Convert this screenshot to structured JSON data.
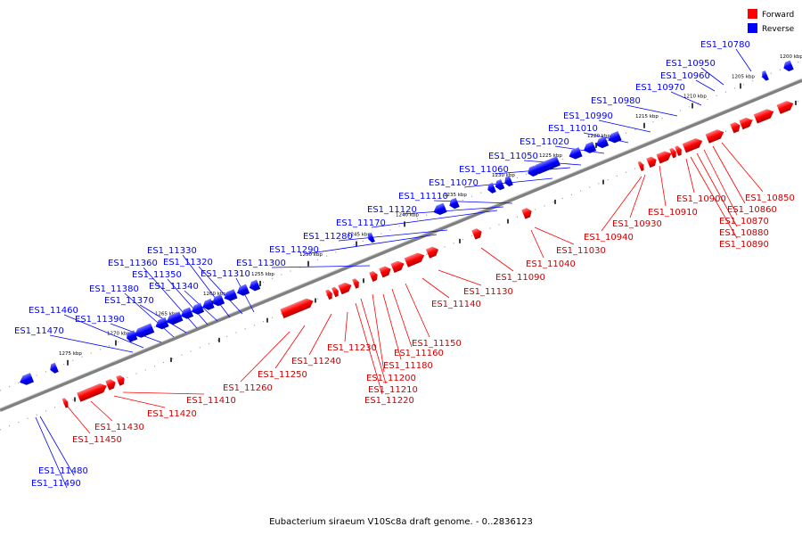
{
  "caption": "Eubacterium siraeum V10Sc8a draft genome. - 0..2836123",
  "colors": {
    "forward": "#ff0000",
    "reverse": "#0000ff",
    "backbone": "#808080"
  },
  "legend": [
    {
      "key": "forward",
      "label": "Forward",
      "color": "#ff0000"
    },
    {
      "key": "reverse",
      "label": "Reverse",
      "color": "#0000ff"
    }
  ],
  "ticks": [
    "1200 kbp",
    "1205 kbp",
    "1210 kbp",
    "1215 kbp",
    "1220 kbp",
    "1225 kbp",
    "1230 kbp",
    "1235 kbp",
    "1240 kbp",
    "1245 kbp",
    "1250 kbp",
    "1255 kbp",
    "1260 kbp",
    "1265 kbp",
    "1270 kbp",
    "1275 kbp"
  ],
  "reverse_genes": [
    "ES1_10780",
    "ES1_10950",
    "ES1_10960",
    "ES1_10970",
    "ES1_10980",
    "ES1_10990",
    "ES1_11010",
    "ES1_11020",
    "ES1_11050",
    "ES1_11060",
    "ES1_11070",
    "ES1_11110",
    "ES1_11120",
    "ES1_11170",
    "ES1_11280",
    "ES1_11290",
    "ES1_11300",
    "ES1_11310",
    "ES1_11320",
    "ES1_11330",
    "ES1_11340",
    "ES1_11350",
    "ES1_11360",
    "ES1_11370",
    "ES1_11380",
    "ES1_11390",
    "ES1_11460",
    "ES1_11470",
    "ES1_11480",
    "ES1_11490"
  ],
  "forward_genes": [
    "ES1_10850",
    "ES1_10860",
    "ES1_10870",
    "ES1_10880",
    "ES1_10890",
    "ES1_10900",
    "ES1_10910",
    "ES1_10930",
    "ES1_10940",
    "ES1_11030",
    "ES1_11040",
    "ES1_11090",
    "ES1_11130",
    "ES1_11140",
    "ES1_11150",
    "ES1_11160",
    "ES1_11180",
    "ES1_11200",
    "ES1_11210",
    "ES1_11220",
    "ES1_11230",
    "ES1_11240",
    "ES1_11250",
    "ES1_11260",
    "ES1_11410",
    "ES1_11420",
    "ES1_11430",
    "ES1_11450"
  ]
}
